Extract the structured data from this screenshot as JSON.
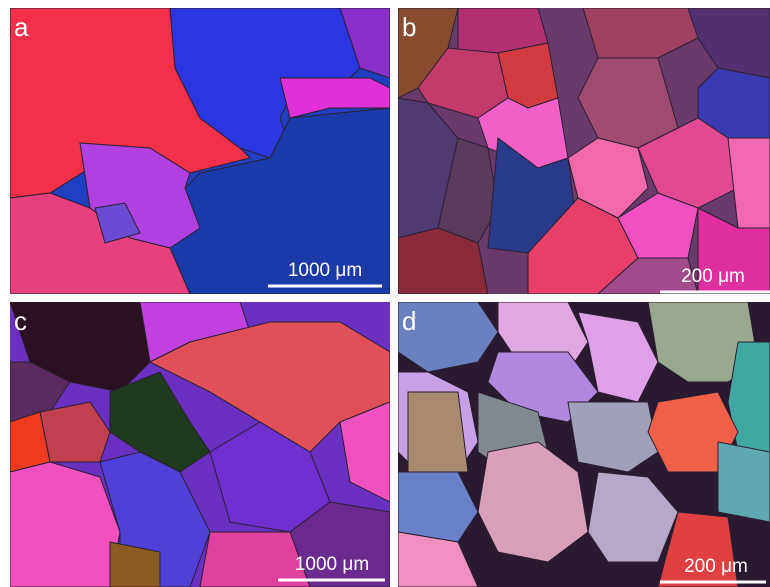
{
  "panels": [
    {
      "label": "a",
      "scale_bar": "1000 μm"
    },
    {
      "label": "b",
      "scale_bar": "200 μm"
    },
    {
      "label": "c",
      "scale_bar": "1000 μm"
    },
    {
      "label": "d",
      "scale_bar": "200 μm"
    }
  ]
}
